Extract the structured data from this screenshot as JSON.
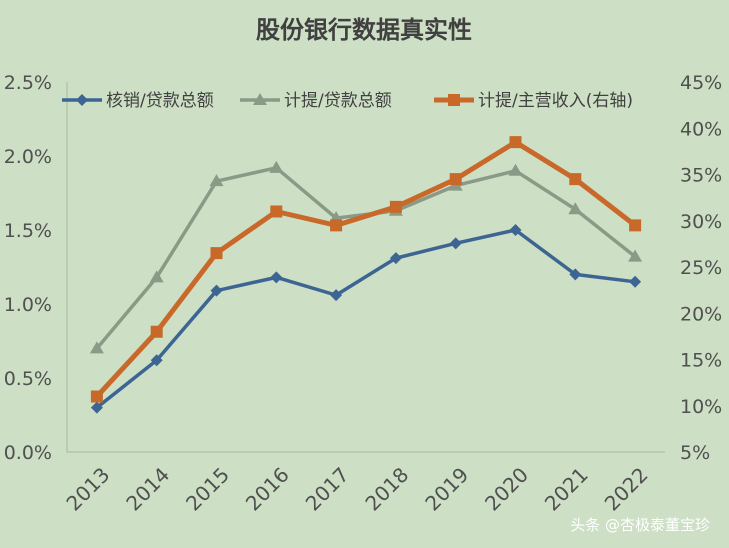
{
  "chart_data": {
    "type": "line",
    "title": "股份银行数据真实性",
    "categories": [
      "2013",
      "2014",
      "2015",
      "2016",
      "2017",
      "2018",
      "2019",
      "2020",
      "2021",
      "2022"
    ],
    "y_left": {
      "ticks": [
        "0.0%",
        "0.5%",
        "1.0%",
        "1.5%",
        "2.0%",
        "2.5%"
      ],
      "min": 0,
      "max": 2.5
    },
    "y_right": {
      "ticks": [
        "5%",
        "10%",
        "15%",
        "20%",
        "25%",
        "30%",
        "35%",
        "40%",
        "45%"
      ],
      "min": 5,
      "max": 45
    },
    "grid": false,
    "legend_position": "top",
    "series": [
      {
        "name": "核销/贷款总额",
        "axis": "left",
        "color": "#3d6594",
        "marker": "diamond",
        "values": [
          0.3,
          0.62,
          1.09,
          1.18,
          1.06,
          1.31,
          1.41,
          1.5,
          1.2,
          1.15
        ]
      },
      {
        "name": "计提/贷款总额",
        "axis": "left",
        "color": "#8a9a87",
        "marker": "triangle",
        "values": [
          0.7,
          1.18,
          1.83,
          1.92,
          1.58,
          1.63,
          1.8,
          1.9,
          1.64,
          1.32
        ]
      },
      {
        "name": "计提/主营收入(右轴)",
        "axis": "right",
        "color": "#c8692a",
        "marker": "square",
        "values": [
          11.0,
          18.0,
          26.5,
          31.0,
          29.5,
          31.5,
          34.5,
          38.5,
          34.5,
          29.5
        ]
      }
    ]
  },
  "watermark": "头条 @杏极泰董宝珍"
}
